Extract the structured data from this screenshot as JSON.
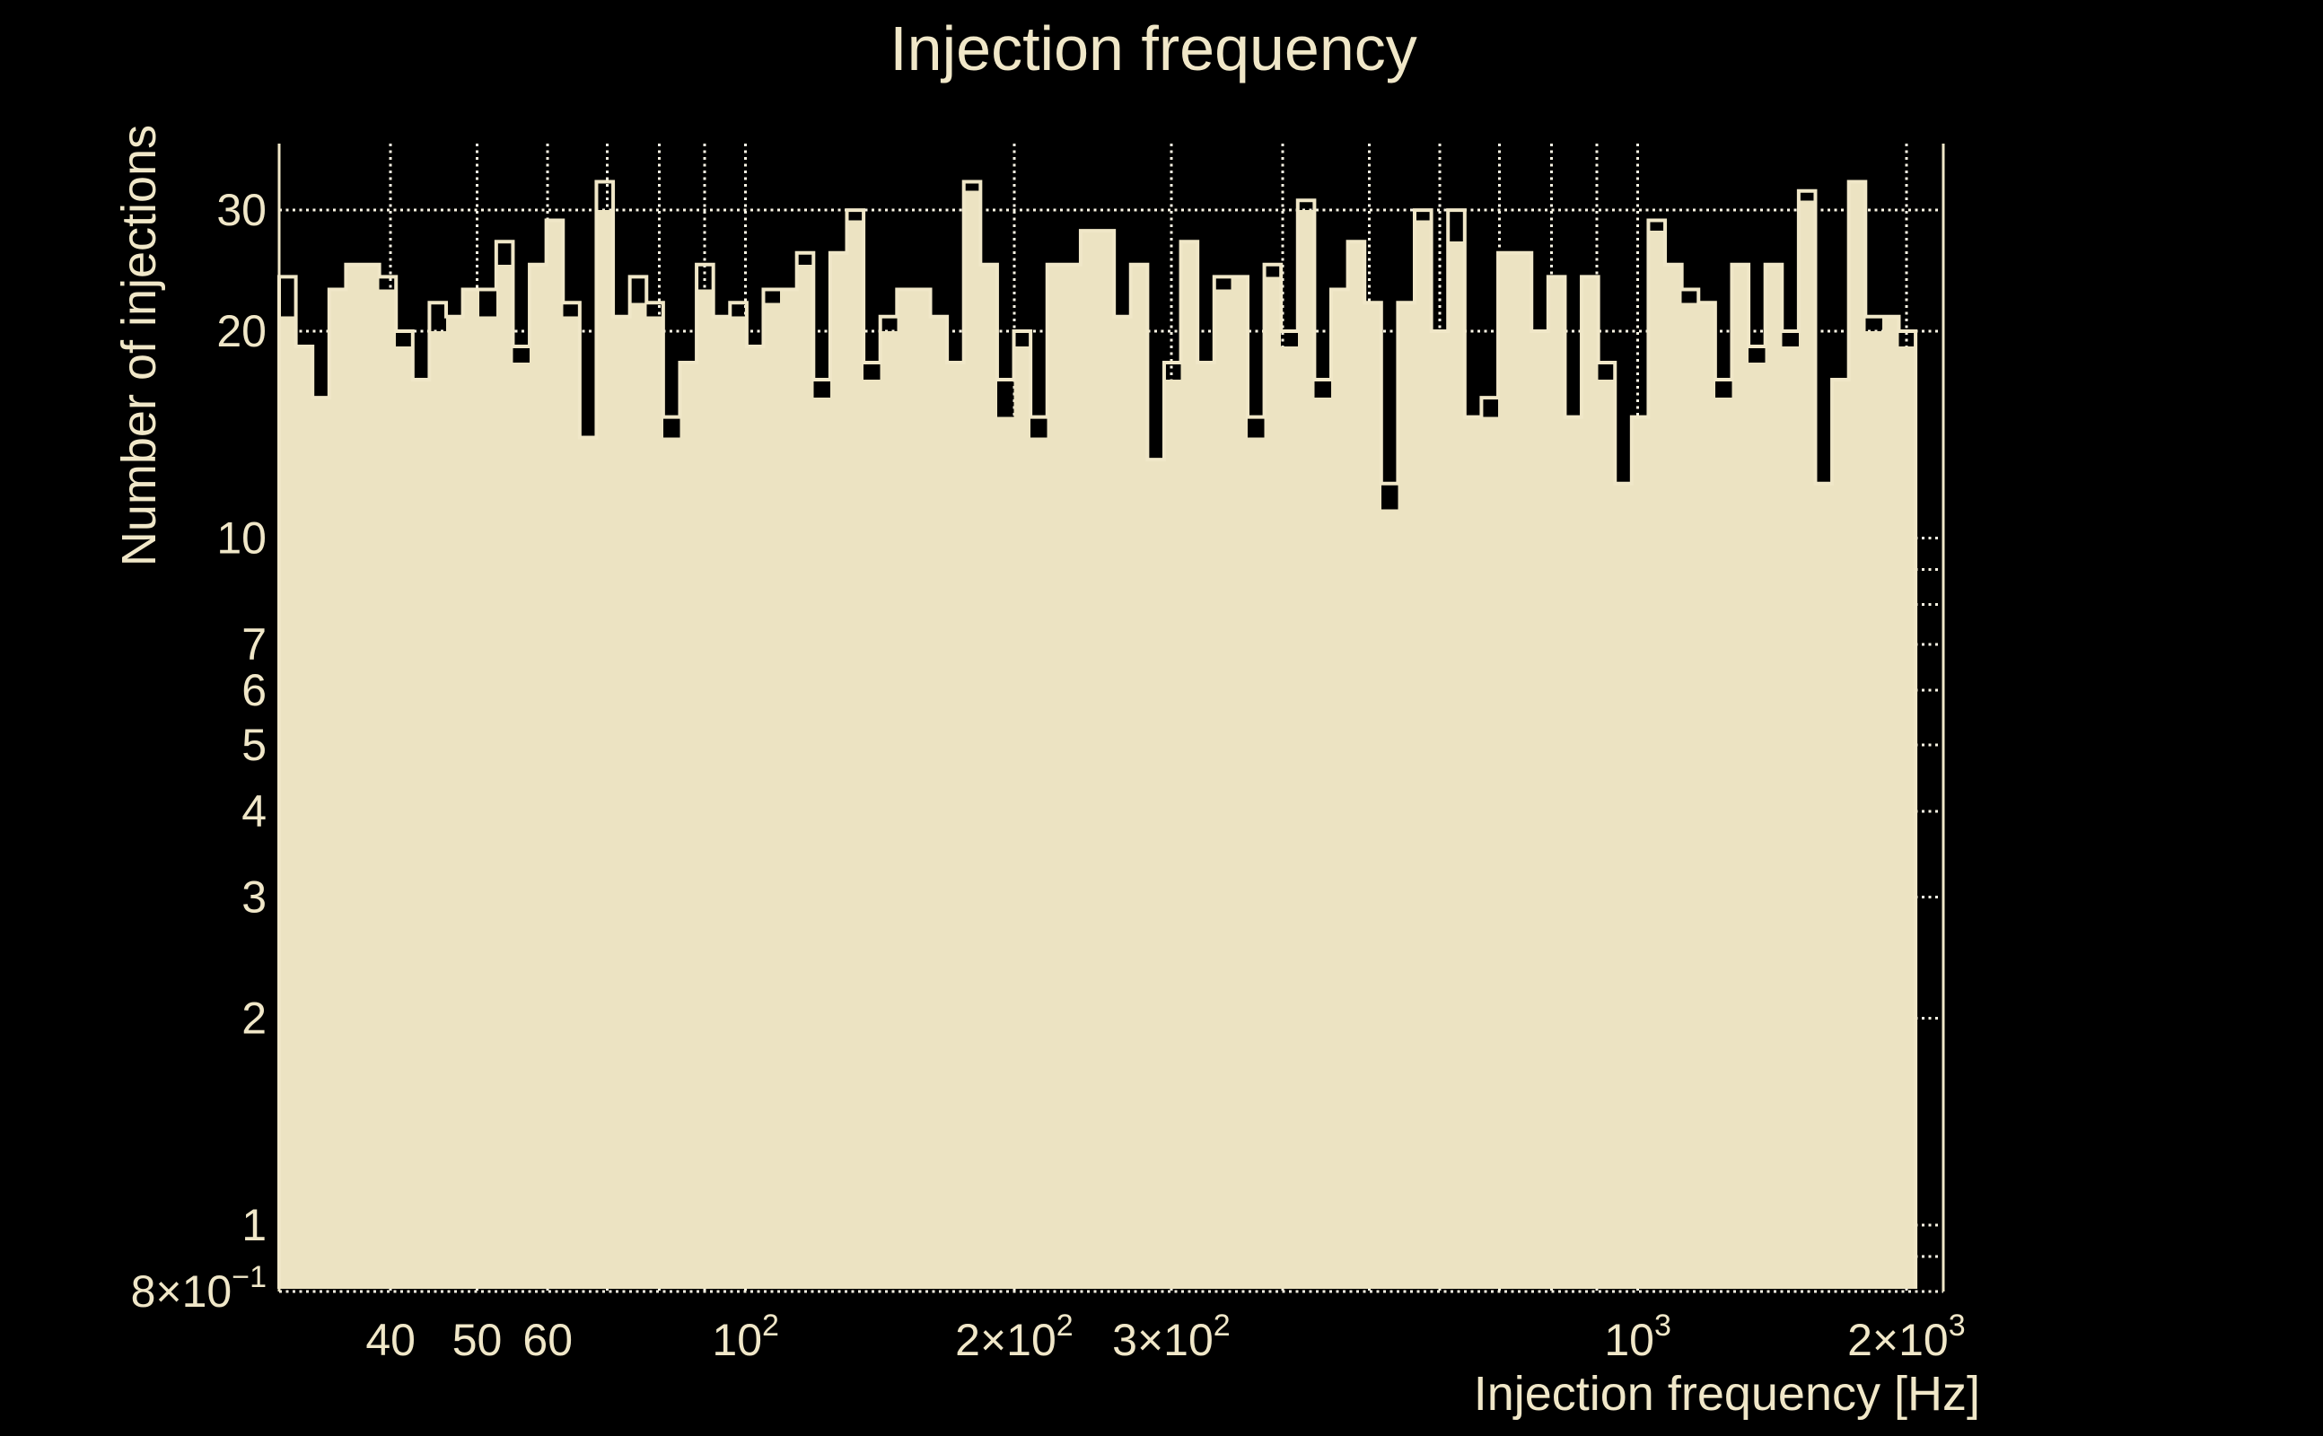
{
  "title": "Injection frequency",
  "xlabel": "Injection frequency [Hz]",
  "ylabel": "Number of injections",
  "colors": {
    "background": "#000000",
    "bar_fill": "#ece3c2",
    "outline_and_text": "#f0e7c8",
    "gridline": "#faf5e4"
  },
  "chart_data": {
    "type": "bar",
    "subtype": "log-log histogram, two overlaid series (solid filled + step outline)",
    "title": "Injection frequency",
    "xlabel": "Injection frequency [Hz]",
    "ylabel": "Number of injections",
    "x_scale": "log",
    "y_scale": "log",
    "xlim": [
      30,
      2200
    ],
    "ylim": [
      0.8,
      37.5
    ],
    "grid": "dotted, drawn under bars",
    "legend": "none",
    "bins": {
      "min_hz": 30,
      "max_hz": 2048,
      "count": 98,
      "spacing": "log"
    },
    "series": [
      {
        "name": "injections-filled",
        "style": "filled",
        "values": [
          21,
          19,
          16,
          23,
          25,
          25,
          23,
          19,
          17,
          20,
          21,
          23,
          21,
          25,
          18,
          25,
          29,
          21,
          14,
          30,
          21,
          22,
          21,
          14,
          18,
          23,
          21,
          21,
          19,
          22,
          23,
          25,
          16,
          26,
          29,
          17,
          20,
          23,
          23,
          21,
          18,
          32,
          25,
          15,
          19,
          14,
          25,
          25,
          28,
          28,
          21,
          25,
          13,
          17,
          27,
          18,
          23,
          24,
          14,
          24,
          19,
          30,
          16,
          23,
          27,
          22,
          11,
          22,
          29,
          20,
          27,
          15,
          15,
          26,
          26,
          20,
          24,
          15,
          24,
          17,
          12,
          15,
          28,
          25,
          22,
          22,
          16,
          25,
          18,
          25,
          19,
          31,
          12,
          17,
          33,
          20,
          21,
          19
        ]
      },
      {
        "name": "injections-outline",
        "style": "step-outline",
        "values": [
          24,
          19,
          16,
          23,
          25,
          25,
          24,
          20,
          17,
          22,
          21,
          23,
          23,
          27,
          19,
          25,
          29,
          22,
          14,
          33,
          21,
          24,
          22,
          15,
          18,
          25,
          21,
          22,
          19,
          23,
          23,
          26,
          17,
          26,
          30,
          18,
          21,
          23,
          23,
          21,
          18,
          33,
          25,
          17,
          20,
          15,
          25,
          25,
          28,
          28,
          21,
          25,
          13,
          18,
          27,
          18,
          24,
          24,
          15,
          25,
          20,
          31,
          17,
          23,
          27,
          22,
          12,
          22,
          30,
          20,
          30,
          15,
          16,
          26,
          26,
          20,
          24,
          15,
          24,
          18,
          12,
          15,
          29,
          25,
          23,
          22,
          17,
          25,
          19,
          25,
          20,
          32,
          12,
          17,
          33,
          21,
          21,
          20
        ]
      }
    ],
    "x_ticks": [
      {
        "value": 40,
        "label": "40",
        "sup": ""
      },
      {
        "value": 50,
        "label": "50",
        "sup": ""
      },
      {
        "value": 60,
        "label": "60",
        "sup": ""
      },
      {
        "value": 100,
        "label": "10",
        "sup": "2"
      },
      {
        "value": 200,
        "label": "2×10",
        "sup": "2"
      },
      {
        "value": 300,
        "label": "3×10",
        "sup": "2"
      },
      {
        "value": 1000,
        "label": "10",
        "sup": "3"
      },
      {
        "value": 2000,
        "label": "2×10",
        "sup": "3"
      }
    ],
    "y_ticks": [
      {
        "value": 30,
        "label": "30",
        "sup": ""
      },
      {
        "value": 20,
        "label": "20",
        "sup": ""
      },
      {
        "value": 10,
        "label": "10",
        "sup": ""
      },
      {
        "value": 7,
        "label": "7",
        "sup": ""
      },
      {
        "value": 6,
        "label": "6",
        "sup": ""
      },
      {
        "value": 5,
        "label": "5",
        "sup": ""
      },
      {
        "value": 4,
        "label": "4",
        "sup": ""
      },
      {
        "value": 3,
        "label": "3",
        "sup": ""
      },
      {
        "value": 2,
        "label": "2",
        "sup": ""
      },
      {
        "value": 1,
        "label": "1",
        "sup": ""
      },
      {
        "value": 0.8,
        "label": "8×10",
        "sup": "−1"
      }
    ],
    "grid_x_values": [
      40,
      50,
      60,
      70,
      80,
      90,
      100,
      200,
      300,
      400,
      500,
      600,
      700,
      800,
      900,
      1000,
      2000
    ],
    "grid_y_values": [
      0.8,
      0.9,
      1,
      2,
      3,
      4,
      5,
      6,
      7,
      8,
      9,
      10,
      20,
      30
    ]
  }
}
